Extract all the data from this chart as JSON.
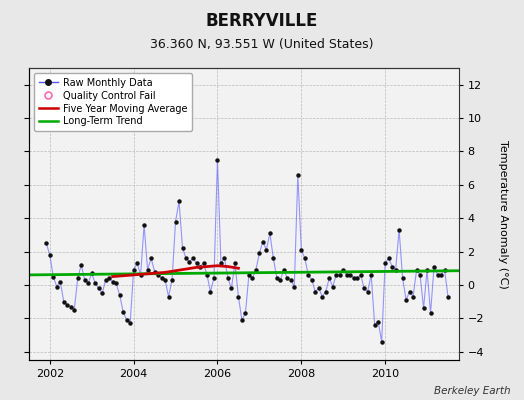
{
  "title": "BERRYVILLE",
  "subtitle": "36.360 N, 93.551 W (United States)",
  "ylabel": "Temperature Anomaly (°C)",
  "credit": "Berkeley Earth",
  "xlim": [
    2001.5,
    2011.75
  ],
  "ylim": [
    -4.5,
    13.0
  ],
  "yticks": [
    -4,
    -2,
    0,
    2,
    4,
    6,
    8,
    10,
    12
  ],
  "xticks": [
    2002,
    2004,
    2006,
    2008,
    2010
  ],
  "bg_color": "#e8e8e8",
  "plot_bg_color": "#f2f2f2",
  "raw_color": "#5555ff",
  "raw_alpha": 0.6,
  "raw_marker_color": "#111111",
  "ma_color": "#cc0000",
  "trend_color": "#00aa00",
  "qc_color": "#ff69b4",
  "raw_data_x": [
    2001.917,
    2002.0,
    2002.083,
    2002.167,
    2002.25,
    2002.333,
    2002.417,
    2002.5,
    2002.583,
    2002.667,
    2002.75,
    2002.833,
    2002.917,
    2003.0,
    2003.083,
    2003.167,
    2003.25,
    2003.333,
    2003.417,
    2003.5,
    2003.583,
    2003.667,
    2003.75,
    2003.833,
    2003.917,
    2004.0,
    2004.083,
    2004.167,
    2004.25,
    2004.333,
    2004.417,
    2004.5,
    2004.583,
    2004.667,
    2004.75,
    2004.833,
    2004.917,
    2005.0,
    2005.083,
    2005.167,
    2005.25,
    2005.333,
    2005.417,
    2005.5,
    2005.583,
    2005.667,
    2005.75,
    2005.833,
    2005.917,
    2006.0,
    2006.083,
    2006.167,
    2006.25,
    2006.333,
    2006.417,
    2006.5,
    2006.583,
    2006.667,
    2006.75,
    2006.833,
    2006.917,
    2007.0,
    2007.083,
    2007.167,
    2007.25,
    2007.333,
    2007.417,
    2007.5,
    2007.583,
    2007.667,
    2007.75,
    2007.833,
    2007.917,
    2008.0,
    2008.083,
    2008.167,
    2008.25,
    2008.333,
    2008.417,
    2008.5,
    2008.583,
    2008.667,
    2008.75,
    2008.833,
    2008.917,
    2009.0,
    2009.083,
    2009.167,
    2009.25,
    2009.333,
    2009.417,
    2009.5,
    2009.583,
    2009.667,
    2009.75,
    2009.833,
    2009.917,
    2010.0,
    2010.083,
    2010.167,
    2010.25,
    2010.333,
    2010.417,
    2010.5,
    2010.583,
    2010.667,
    2010.75,
    2010.833,
    2010.917,
    2011.0,
    2011.083,
    2011.167,
    2011.25,
    2011.333,
    2011.417,
    2011.5
  ],
  "raw_data_y": [
    2.5,
    1.8,
    0.5,
    -0.1,
    0.2,
    -1.0,
    -1.2,
    -1.3,
    -1.5,
    0.4,
    1.2,
    0.3,
    0.1,
    0.7,
    0.1,
    -0.2,
    -0.5,
    0.3,
    0.4,
    0.2,
    0.1,
    -0.6,
    -1.6,
    -2.1,
    -2.3,
    0.9,
    1.3,
    0.6,
    3.6,
    0.9,
    1.6,
    0.8,
    0.6,
    0.4,
    0.3,
    -0.7,
    0.3,
    3.8,
    5.0,
    2.2,
    1.6,
    1.4,
    1.6,
    1.3,
    1.1,
    1.3,
    0.6,
    -0.4,
    0.4,
    7.5,
    1.3,
    1.6,
    0.4,
    -0.2,
    1.3,
    -0.7,
    -2.1,
    -1.7,
    0.6,
    0.4,
    0.9,
    1.9,
    2.6,
    2.1,
    3.1,
    1.6,
    0.4,
    0.3,
    0.9,
    0.4,
    0.3,
    -0.1,
    6.6,
    2.1,
    1.6,
    0.6,
    0.3,
    -0.4,
    -0.2,
    -0.7,
    -0.4,
    0.4,
    -0.1,
    0.6,
    0.6,
    0.9,
    0.6,
    0.6,
    0.4,
    0.4,
    0.6,
    -0.2,
    -0.4,
    0.6,
    -2.4,
    -2.2,
    -3.4,
    1.3,
    1.6,
    1.1,
    0.9,
    3.3,
    0.4,
    -0.9,
    -0.4,
    -0.7,
    0.9,
    0.6,
    -1.4,
    0.9,
    -1.7,
    1.1,
    0.6,
    0.6,
    0.9,
    -0.7
  ],
  "ma_x": [
    2003.5,
    2003.75,
    2004.0,
    2004.25,
    2004.5,
    2004.75,
    2005.0,
    2005.25,
    2005.5,
    2005.75,
    2006.0,
    2006.25,
    2006.5
  ],
  "ma_y": [
    0.5,
    0.55,
    0.6,
    0.65,
    0.7,
    0.75,
    0.85,
    0.95,
    1.05,
    1.1,
    1.15,
    1.1,
    1.0
  ],
  "trend_x": [
    2001.5,
    2011.75
  ],
  "trend_y": [
    0.6,
    0.85
  ],
  "title_fontsize": 12,
  "subtitle_fontsize": 9,
  "tick_labelsize": 8,
  "ylabel_fontsize": 8,
  "legend_fontsize": 7,
  "credit_fontsize": 7.5
}
